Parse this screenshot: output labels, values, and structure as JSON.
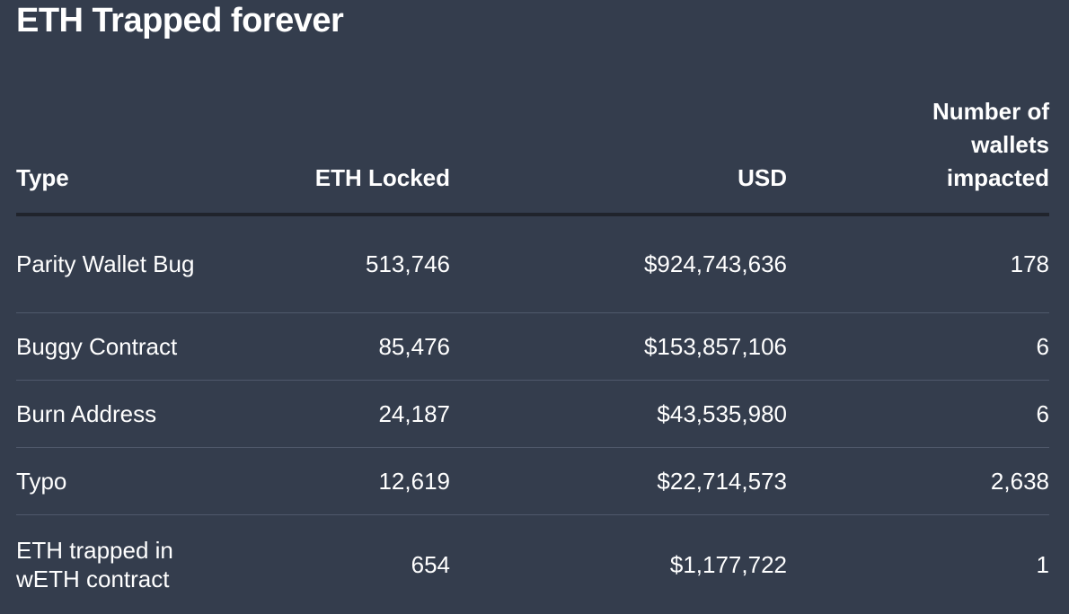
{
  "header": {
    "title": "ETH Trapped forever"
  },
  "table": {
    "columns": [
      "Type",
      "ETH Locked",
      "USD",
      "Number of wallets impacted"
    ],
    "rows": [
      [
        "Parity Wallet Bug",
        "513,746",
        "$924,743,636",
        "178"
      ],
      [
        "Buggy Contract",
        "85,476",
        "$153,857,106",
        "6"
      ],
      [
        "Burn Address",
        "24,187",
        "$43,535,980",
        "6"
      ],
      [
        "Typo",
        "12,619",
        "$22,714,573",
        "2,638"
      ],
      [
        "ETH trapped in wETH contract",
        "654",
        "$1,177,722",
        "1"
      ]
    ]
  }
}
